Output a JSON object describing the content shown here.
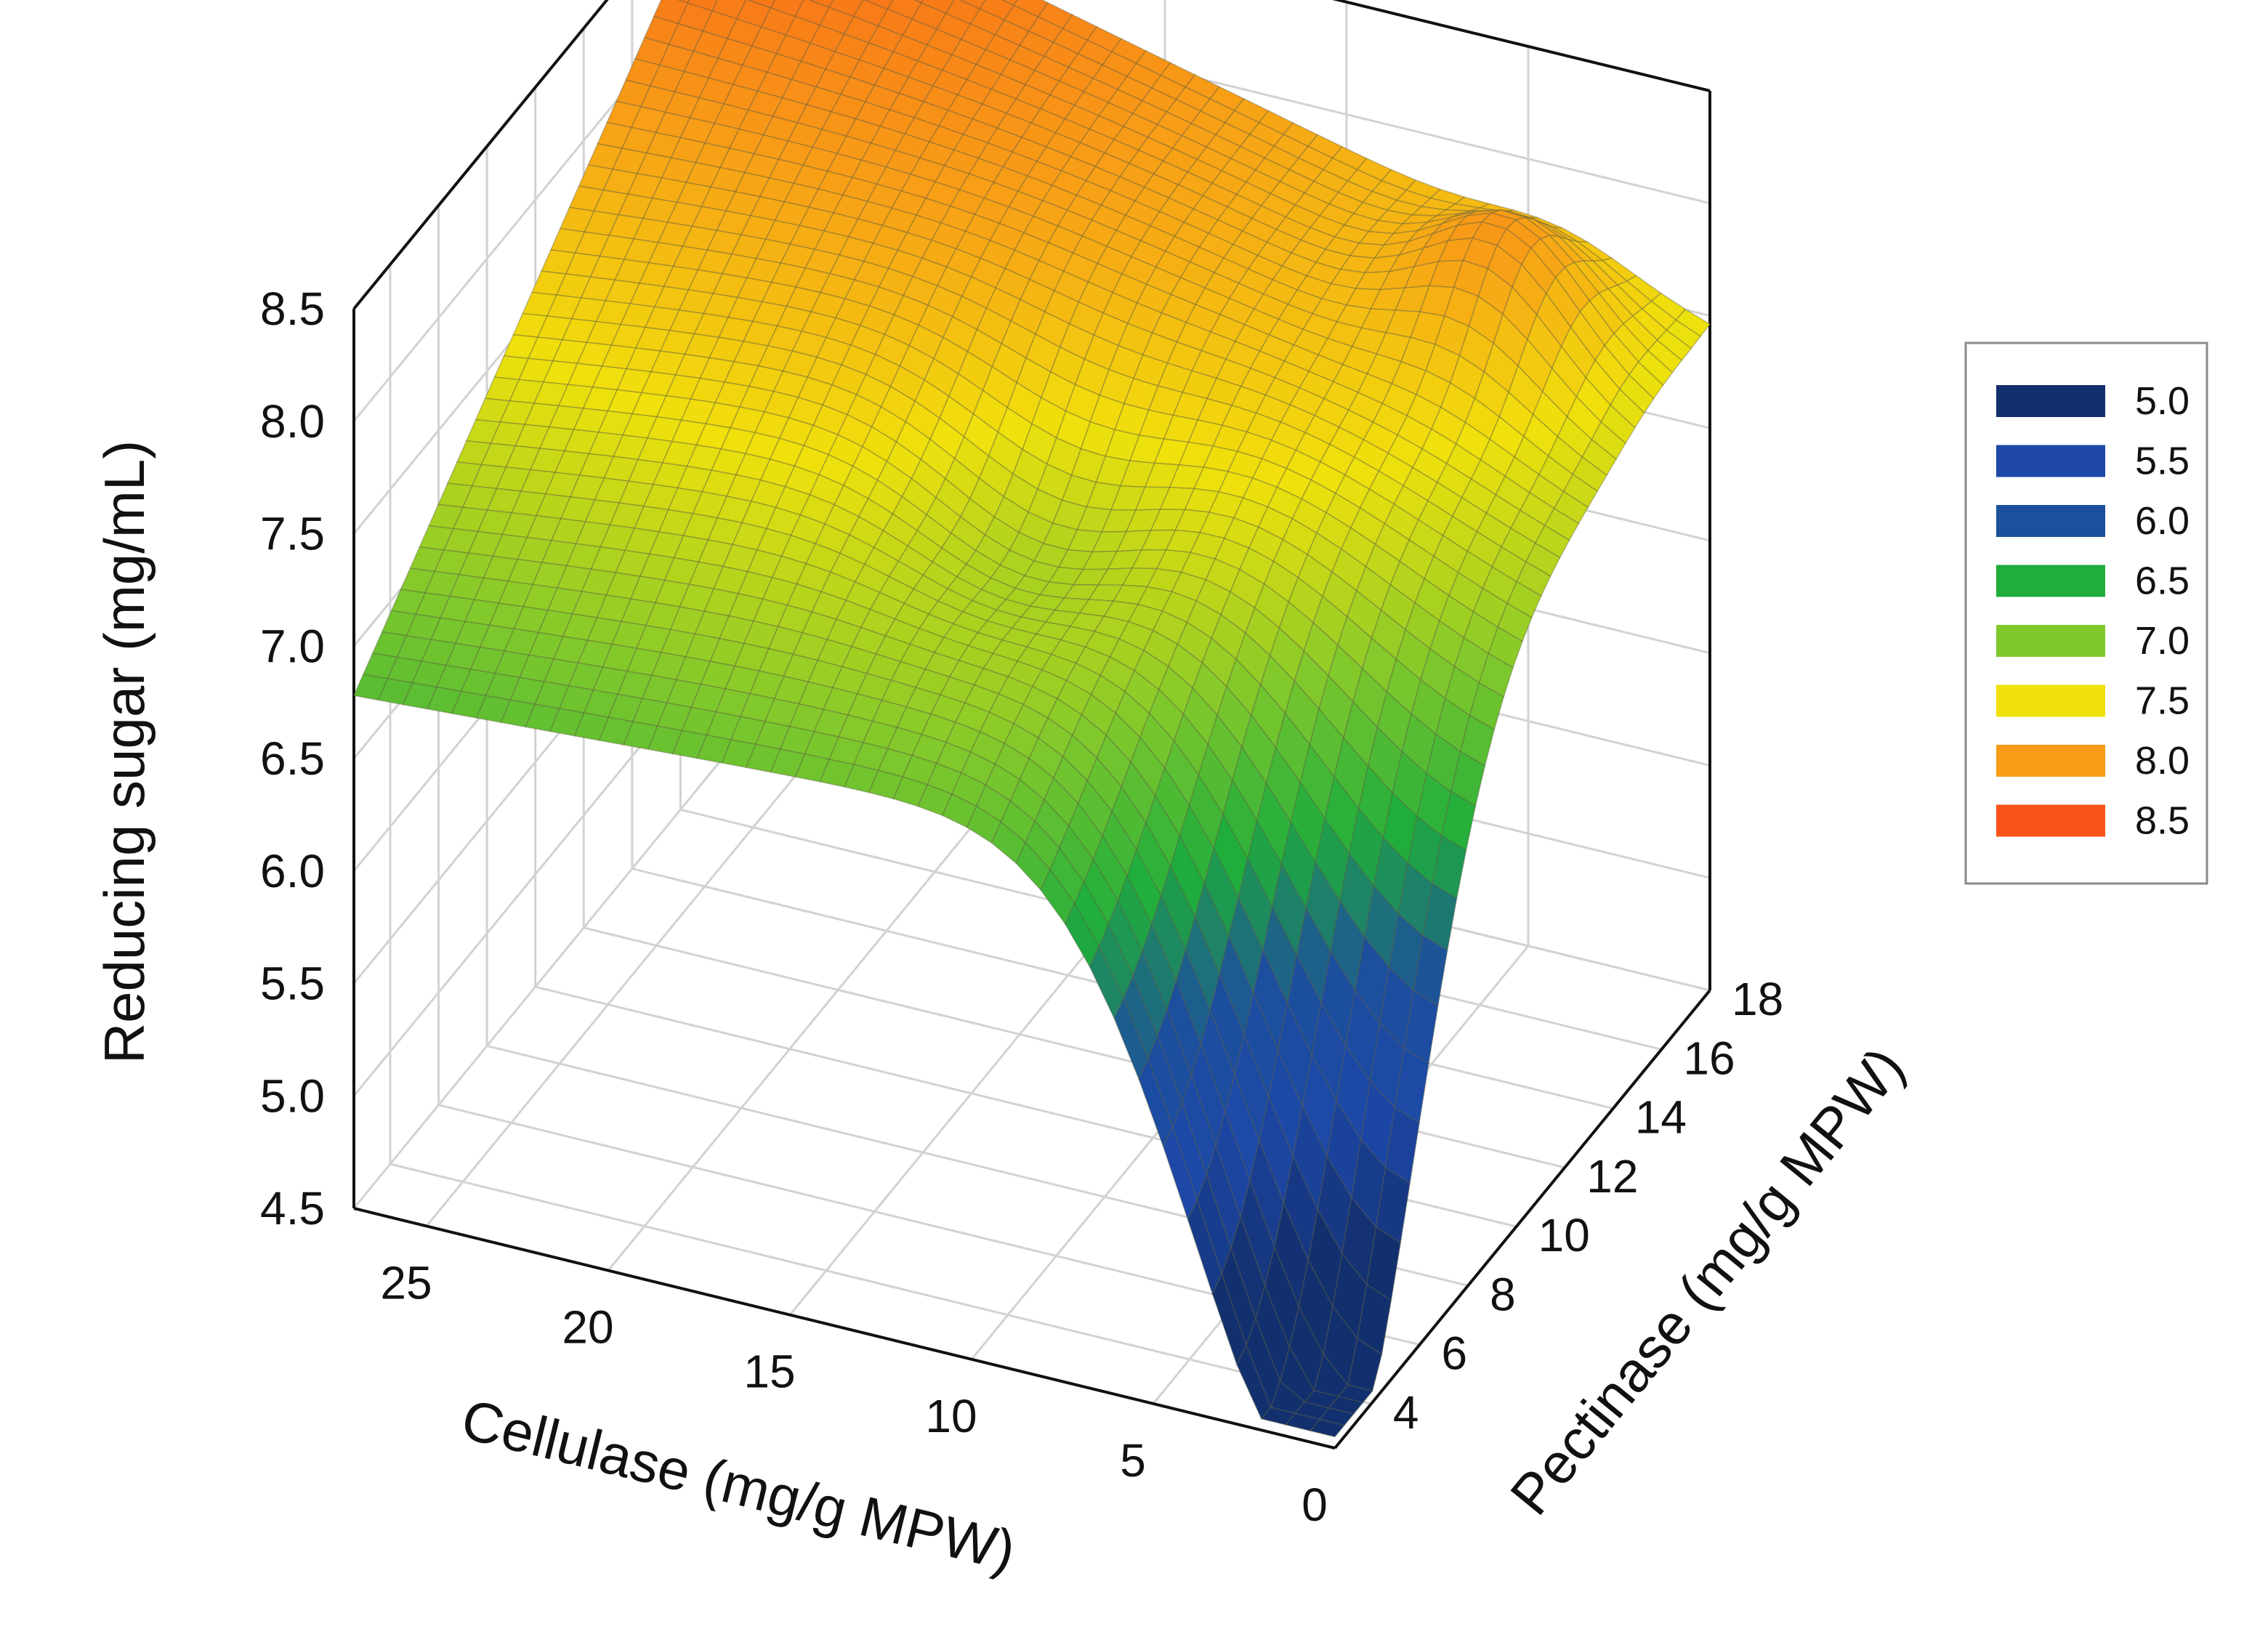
{
  "chart_data": {
    "type": "surface3d",
    "title": "",
    "x_axis": {
      "label": "Cellulase (mg/g MPW)",
      "range": [
        0,
        27
      ],
      "ticks": [
        25,
        20,
        15,
        10,
        5,
        0
      ],
      "tick_labels": [
        "25",
        "20",
        "15",
        "10",
        "5",
        "0"
      ]
    },
    "y_axis": {
      "label": "Pectinase (mg/g MPW)",
      "range": [
        2.5,
        18
      ],
      "ticks": [
        4,
        6,
        8,
        10,
        12,
        14,
        16,
        18
      ],
      "tick_labels": [
        "4",
        "6",
        "8",
        "10",
        "12",
        "14",
        "16",
        "18"
      ]
    },
    "z_axis": {
      "label": "Reducing sugar (mg/mL)",
      "range": [
        4.5,
        8.5
      ],
      "ticks": [
        4.5,
        5.0,
        5.5,
        6.0,
        6.5,
        7.0,
        7.5,
        8.0,
        8.5
      ],
      "tick_labels": [
        "4.5",
        "5.0",
        "5.5",
        "6.0",
        "6.5",
        "7.0",
        "7.5",
        "8.0",
        "8.5"
      ]
    },
    "surface_samples": [
      {
        "cellulase": 27,
        "pectinase": 2.5,
        "reducing_sugar": 6.8
      },
      {
        "cellulase": 27,
        "pectinase": 18,
        "reducing_sugar": 8.5
      },
      {
        "cellulase": 0,
        "pectinase": 18,
        "reducing_sugar": 7.45
      },
      {
        "cellulase": 0,
        "pectinase": 2.5,
        "reducing_sugar": 4.6
      },
      {
        "cellulase": 5,
        "pectinase": 2.5,
        "reducing_sugar": 5.6
      },
      {
        "cellulase": 13,
        "pectinase": 10,
        "reducing_sugar": 7.3
      },
      {
        "cellulase": 3,
        "pectinase": 16,
        "reducing_sugar": 7.8
      }
    ],
    "legend": {
      "placement": "right",
      "items": [
        {
          "label": "5.0",
          "color": "#13306e"
        },
        {
          "label": "5.5",
          "color": "#1d48a8"
        },
        {
          "label": "6.0",
          "color": "#1c4f9c"
        },
        {
          "label": "6.5",
          "color": "#1fad3c"
        },
        {
          "label": "7.0",
          "color": "#7fc82c"
        },
        {
          "label": "7.5",
          "color": "#f0e10c"
        },
        {
          "label": "8.0",
          "color": "#f89b17"
        },
        {
          "label": "8.5",
          "color": "#f9521a"
        }
      ]
    },
    "grid": true
  }
}
